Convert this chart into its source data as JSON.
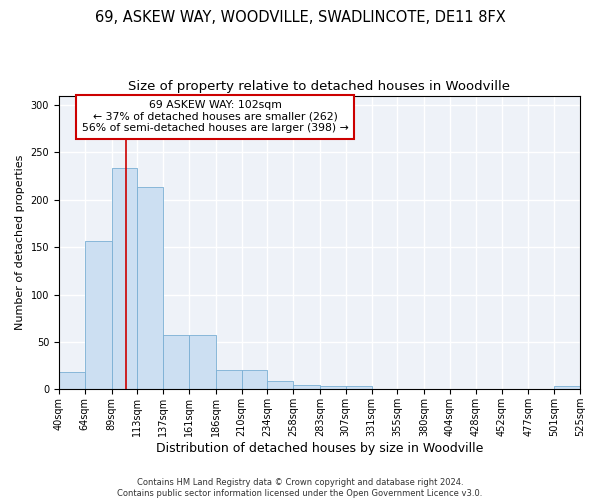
{
  "title": "69, ASKEW WAY, WOODVILLE, SWADLINCOTE, DE11 8FX",
  "subtitle": "Size of property relative to detached houses in Woodville",
  "xlabel": "Distribution of detached houses by size in Woodville",
  "ylabel": "Number of detached properties",
  "bar_color": "#ccdff2",
  "bar_edge_color": "#7aafd4",
  "vline_x": 102,
  "vline_color": "#cc0000",
  "annotation_lines": [
    "69 ASKEW WAY: 102sqm",
    "← 37% of detached houses are smaller (262)",
    "56% of semi-detached houses are larger (398) →"
  ],
  "annotation_box_color": "white",
  "annotation_box_edge_color": "#cc0000",
  "bin_edges": [
    40,
    64,
    89,
    113,
    137,
    161,
    186,
    210,
    234,
    258,
    283,
    307,
    331,
    355,
    380,
    404,
    428,
    452,
    477,
    501,
    525
  ],
  "bar_heights": [
    18,
    157,
    234,
    214,
    57,
    57,
    20,
    20,
    9,
    5,
    3,
    3,
    0,
    0,
    0,
    0,
    0,
    0,
    0,
    3
  ],
  "ylim": [
    0,
    310
  ],
  "yticks": [
    0,
    50,
    100,
    150,
    200,
    250,
    300
  ],
  "background_color": "#eef2f8",
  "grid_color": "white",
  "footer_text": "Contains HM Land Registry data © Crown copyright and database right 2024.\nContains public sector information licensed under the Open Government Licence v3.0.",
  "title_fontsize": 10.5,
  "subtitle_fontsize": 9.5,
  "xlabel_fontsize": 9,
  "ylabel_fontsize": 8,
  "tick_fontsize": 7,
  "footer_fontsize": 6
}
